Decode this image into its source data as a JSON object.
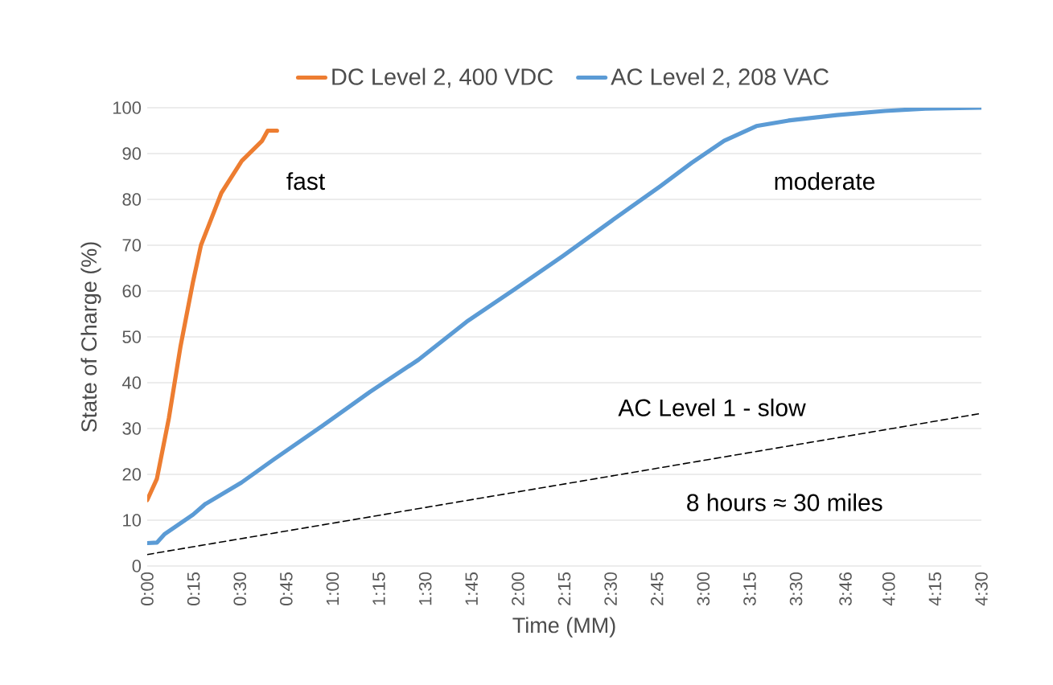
{
  "chart_data": {
    "type": "line",
    "xlabel": "Time (MM)",
    "ylabel": "State of Charge (%)",
    "xlim": [
      0,
      4.5
    ],
    "ylim": [
      0,
      100
    ],
    "xticks": [
      {
        "value": 0,
        "label": "0:00"
      },
      {
        "value": 0.25,
        "label": "0:15"
      },
      {
        "value": 0.5,
        "label": "0:30"
      },
      {
        "value": 0.75,
        "label": "0:45"
      },
      {
        "value": 1,
        "label": "1:00"
      },
      {
        "value": 1.25,
        "label": "1:15"
      },
      {
        "value": 1.5,
        "label": "1:30"
      },
      {
        "value": 1.75,
        "label": "1:45"
      },
      {
        "value": 2,
        "label": "2:00"
      },
      {
        "value": 2.25,
        "label": "2:15"
      },
      {
        "value": 2.5,
        "label": "2:30"
      },
      {
        "value": 2.75,
        "label": "2:45"
      },
      {
        "value": 3,
        "label": "3:00"
      },
      {
        "value": 3.25,
        "label": "3:15"
      },
      {
        "value": 3.5,
        "label": "3:30"
      },
      {
        "value": 3.7667,
        "label": "3:46"
      },
      {
        "value": 4,
        "label": "4:00"
      },
      {
        "value": 4.25,
        "label": "4:15"
      },
      {
        "value": 4.5,
        "label": "4:30"
      }
    ],
    "yticks": [
      0,
      10,
      20,
      30,
      40,
      50,
      60,
      70,
      80,
      90,
      100
    ],
    "grid": "y",
    "legend": "top",
    "series": [
      {
        "name": "DC Level 2, 400 VDC",
        "color": "#ed7d31",
        "x": [
          0,
          0.052,
          0.117,
          0.18,
          0.247,
          0.29,
          0.4,
          0.51,
          0.62,
          0.65,
          0.7
        ],
        "values": [
          14.4,
          19,
          32.3,
          48,
          62,
          70,
          81.4,
          88.4,
          92.8,
          95,
          95
        ]
      },
      {
        "name": "AC Level 2, 208 VAC",
        "color": "#5b9bd5",
        "x": [
          0,
          0.052,
          0.095,
          0.247,
          0.3125,
          0.508,
          0.681,
          0.942,
          1.202,
          1.463,
          1.723,
          1.983,
          2.244,
          2.504,
          2.765,
          2.938,
          3.112,
          3.286,
          3.459,
          3.72,
          3.98,
          4.197,
          4.5
        ],
        "values": [
          5,
          5.1,
          7,
          11.2,
          13.5,
          18.2,
          23.2,
          30.5,
          38,
          45,
          53.3,
          60.4,
          67.7,
          75.3,
          82.8,
          88,
          92.8,
          96,
          97.2,
          98.4,
          99.3,
          99.8,
          100
        ]
      },
      {
        "type": "line",
        "line_style": "dashed",
        "color": "#000000",
        "x": [
          0,
          4.5
        ],
        "values": [
          2.5,
          33.3
        ]
      }
    ],
    "annotations": [
      "fast",
      "moderate",
      "AC Level 1 - slow",
      "8 hours ≈ 30 miles"
    ]
  }
}
